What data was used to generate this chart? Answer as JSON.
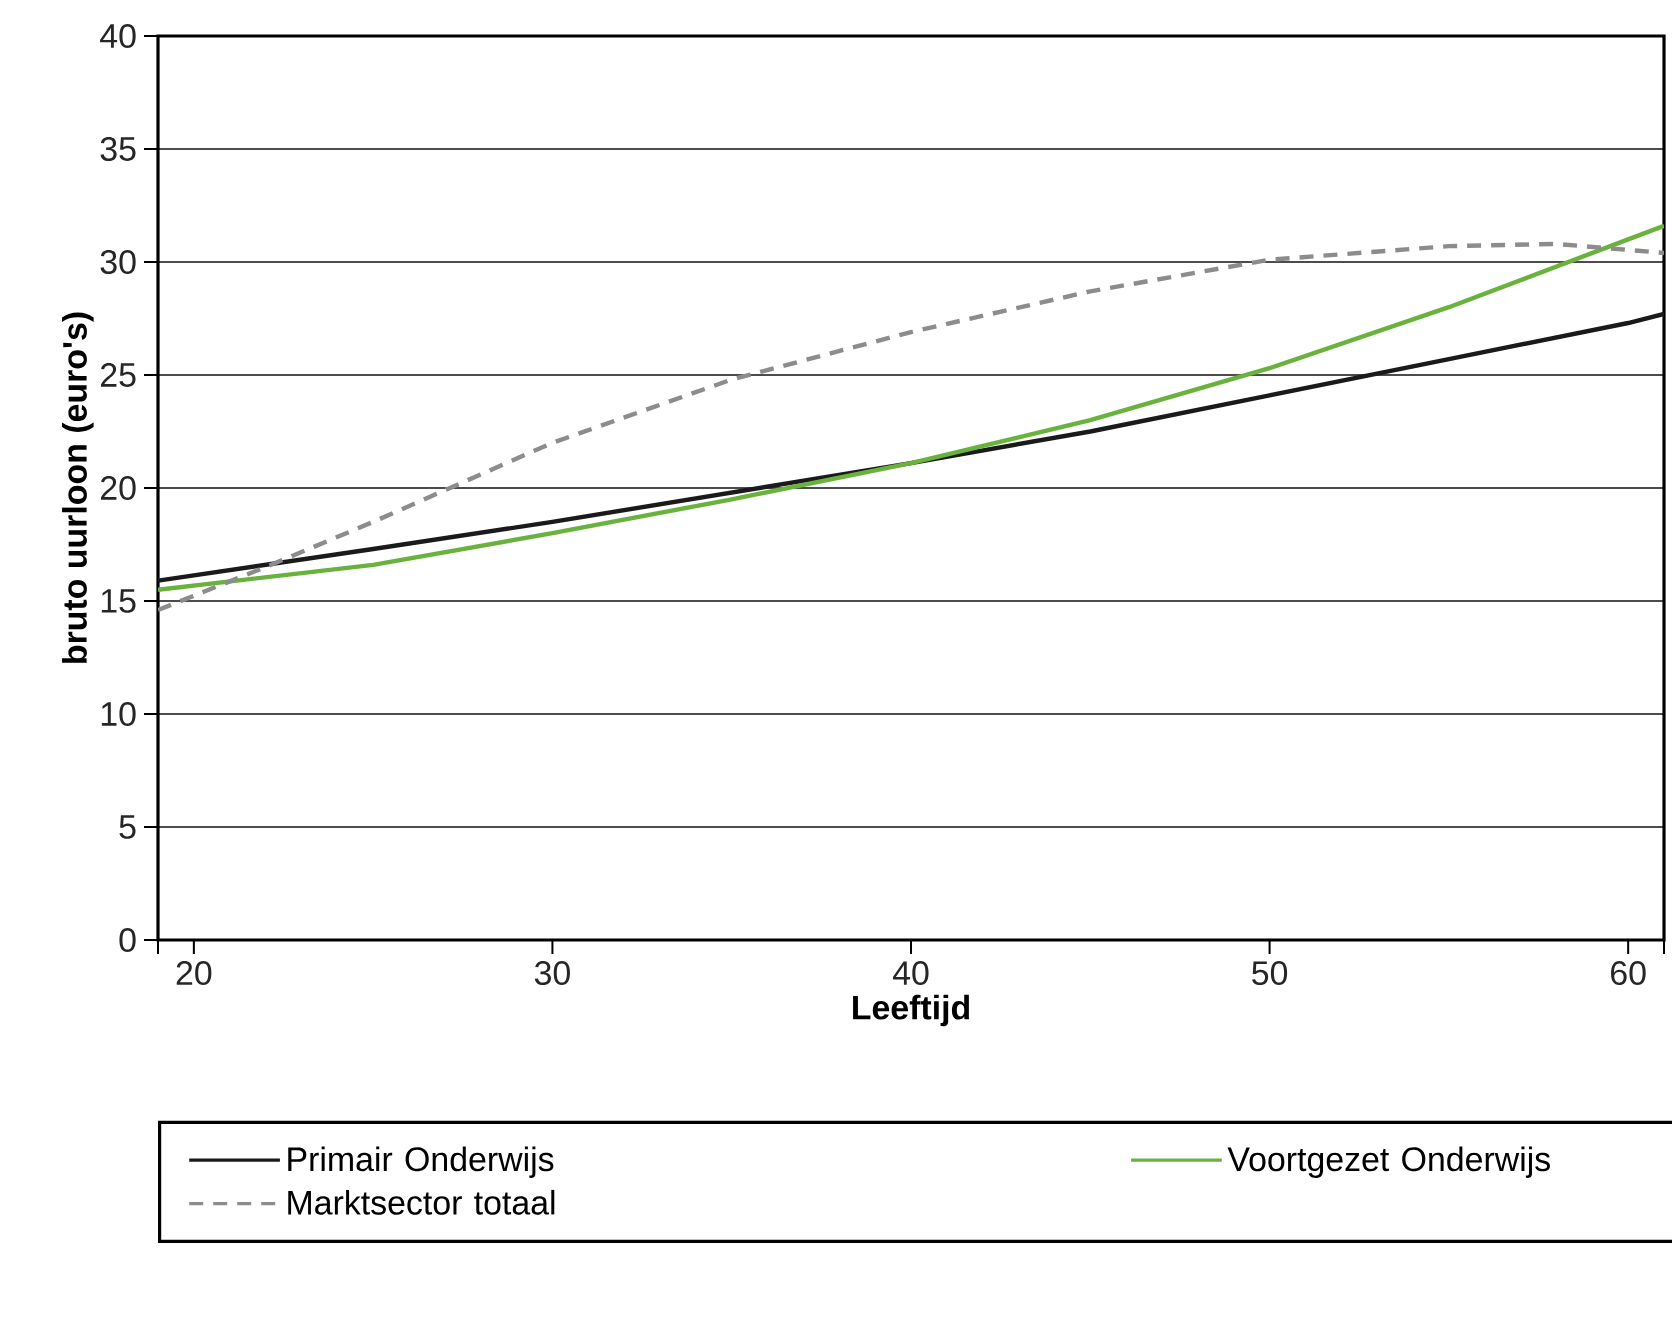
{
  "chart_data": {
    "type": "line",
    "xlabel": "Leeftijd",
    "ylabel": "bruto uurloon (euro's)",
    "xlim": [
      19,
      61
    ],
    "ylim": [
      0,
      40
    ],
    "xticks": [
      {
        "value": 19,
        "label": null
      },
      20,
      30,
      40,
      50,
      60,
      {
        "value": 61,
        "label": null
      }
    ],
    "yticks": [
      0,
      5,
      10,
      15,
      20,
      25,
      30,
      35,
      40
    ],
    "grid": "y",
    "legend": "bottom",
    "series": [
      {
        "name": "Primair Onderwijs",
        "color": "#1a1a1a",
        "line_style": "solid",
        "x": [
          19,
          25,
          30,
          35,
          40,
          45,
          50,
          55,
          60,
          61
        ],
        "values": [
          15.9,
          17.3,
          18.5,
          19.8,
          21.1,
          22.5,
          24.1,
          25.7,
          27.3,
          27.7
        ]
      },
      {
        "name": "Voortgezet Onderwijs",
        "color": "#6ab23e",
        "line_style": "solid",
        "x": [
          19,
          25,
          30,
          35,
          40,
          45,
          50,
          55,
          60,
          61
        ],
        "values": [
          15.5,
          16.6,
          18.0,
          19.5,
          21.1,
          23.0,
          25.3,
          28.0,
          31.0,
          31.6
        ]
      },
      {
        "name": "Marktsector totaal",
        "color": "#8c8c8c",
        "line_style": "dashed",
        "x": [
          19,
          22,
          25,
          30,
          35,
          40,
          45,
          50,
          55,
          58,
          61
        ],
        "values": [
          14.6,
          16.5,
          18.5,
          22.0,
          24.8,
          26.9,
          28.7,
          30.1,
          30.7,
          30.8,
          30.4
        ]
      }
    ]
  }
}
